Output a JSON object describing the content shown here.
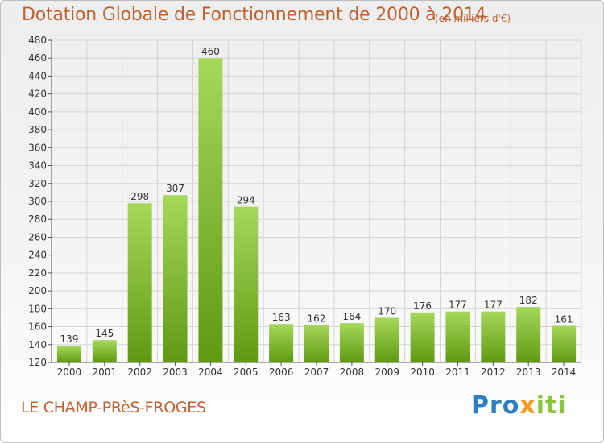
{
  "header": {
    "title": "Dotation Globale de Fonctionnement de 2000 à 2014",
    "unit_note": "(en milliers d'€)"
  },
  "footer": {
    "town": "LE CHAMP-PRèS-FROGES",
    "logo": {
      "p": "P",
      "r": "r",
      "o": "o",
      "x": "x",
      "i1": "i",
      "t": "t",
      "i2": "i"
    }
  },
  "colors": {
    "title": "#c0612f",
    "bar_top": "#a6d85a",
    "bar_bottom": "#5f9a12",
    "grid": "#d4d4d4",
    "logo_blue": "#2e7fc1",
    "logo_orange": "#f39c1f",
    "logo_green": "#8cc63e"
  },
  "chart_data": {
    "type": "bar",
    "title": "Dotation Globale de Fonctionnement de 2000 à 2014",
    "subtitle": "(en milliers d'€)",
    "xlabel": "",
    "ylabel": "",
    "categories": [
      "2000",
      "2001",
      "2002",
      "2003",
      "2004",
      "2005",
      "2006",
      "2007",
      "2008",
      "2009",
      "2010",
      "2011",
      "2012",
      "2013",
      "2014"
    ],
    "values": [
      139,
      145,
      298,
      307,
      460,
      294,
      163,
      162,
      164,
      170,
      176,
      177,
      177,
      182,
      161
    ],
    "ylim": [
      120,
      480
    ],
    "yticks": [
      120,
      140,
      160,
      180,
      200,
      220,
      240,
      260,
      280,
      300,
      320,
      340,
      360,
      380,
      400,
      420,
      440,
      460,
      480
    ],
    "grid": true,
    "legend": "none"
  }
}
